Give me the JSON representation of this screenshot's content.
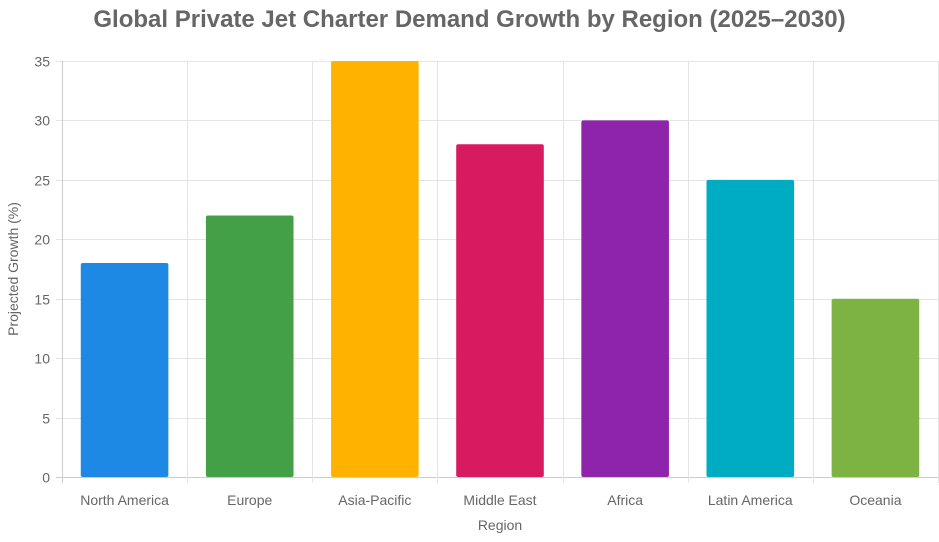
{
  "chart_data": {
    "type": "bar",
    "title": "Global Private Jet Charter Demand Growth by Region (2025–2030)",
    "xlabel": "Region",
    "ylabel": "Projected Growth (%)",
    "categories": [
      "North America",
      "Europe",
      "Asia-Pacific",
      "Middle East",
      "Africa",
      "Latin America",
      "Oceania"
    ],
    "values": [
      18,
      22,
      35,
      28,
      30,
      25,
      15
    ],
    "colors": [
      "#1e88e5",
      "#43a047",
      "#ffb300",
      "#d81b60",
      "#8e24aa",
      "#00acc1",
      "#7cb342"
    ],
    "ylim": [
      0,
      35
    ],
    "yticks": [
      0,
      5,
      10,
      15,
      20,
      25,
      30,
      35
    ],
    "grid": true,
    "legend": "none"
  }
}
